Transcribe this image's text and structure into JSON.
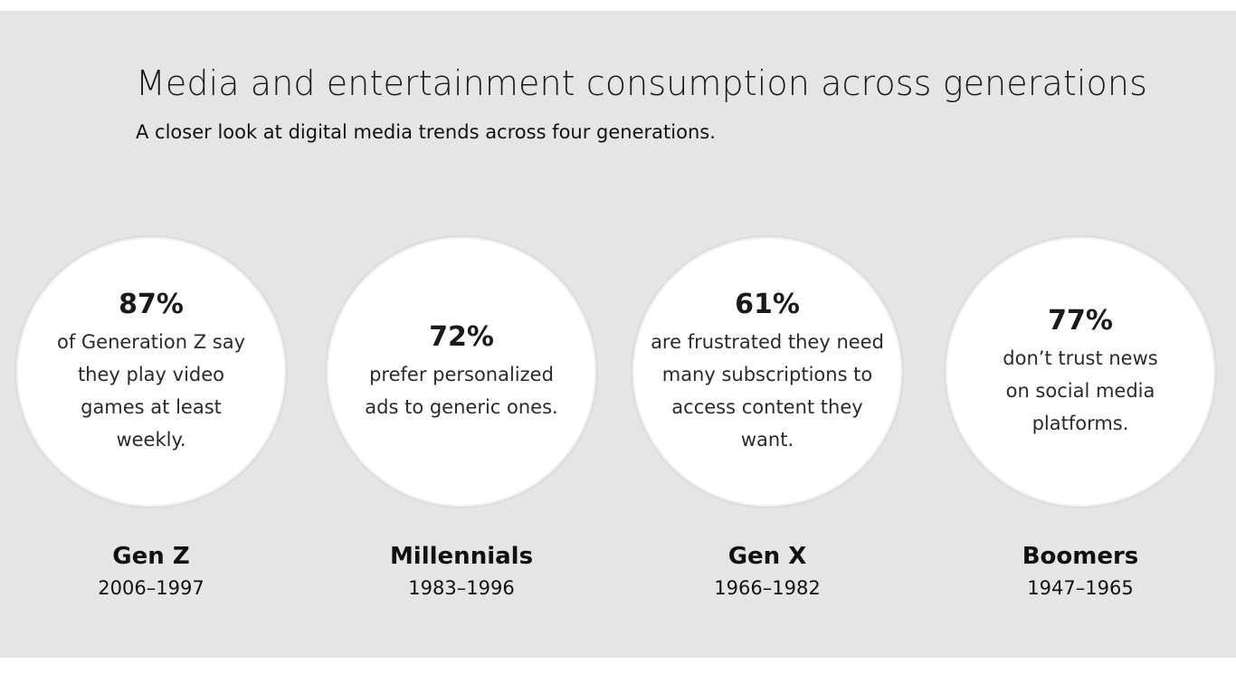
{
  "header": {
    "title": "Media and entertainment consumption across generations",
    "subtitle": "A closer look at digital media trends across four generations."
  },
  "generations": [
    {
      "stat": "87%",
      "description": "of Generation Z say they play video games at least weekly.",
      "name": "Gen Z",
      "years": "2006–1997"
    },
    {
      "stat": "72%",
      "description": "prefer personalized ads to generic ones.",
      "name": "Millennials",
      "years": "1983–1996"
    },
    {
      "stat": "61%",
      "description": "are frustrated they need many subscriptions to access content they want.",
      "name": "Gen X",
      "years": "1966–1982"
    },
    {
      "stat": "77%",
      "description": "don’t trust news on social media platforms.",
      "name": "Boomers",
      "years": "1947–1965"
    }
  ],
  "colors": {
    "background": "#e5e5e5",
    "circle": "#ffffff",
    "text": "#111111"
  }
}
